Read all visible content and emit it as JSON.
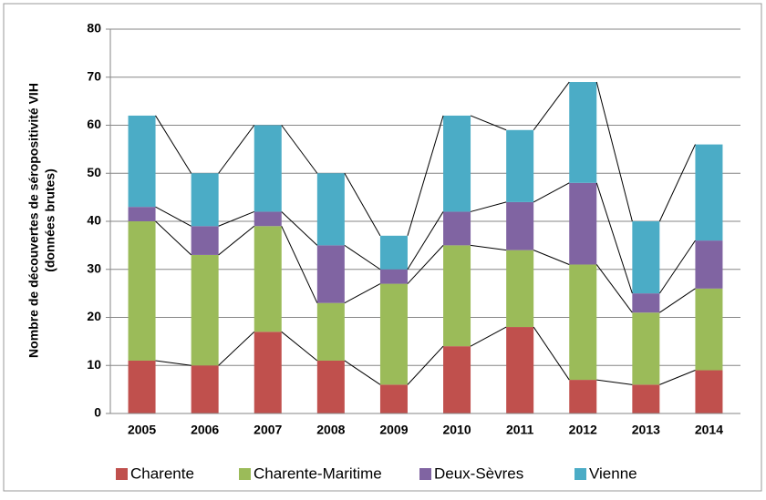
{
  "chart_data": {
    "type": "stacked_bar",
    "y_label": [
      "Nombre de découvertes  de séropositivité VIH",
      "(données brutes)"
    ],
    "categories": [
      "2005",
      "2006",
      "2007",
      "2008",
      "2009",
      "2010",
      "2011",
      "2012",
      "2013",
      "2014"
    ],
    "series": [
      {
        "name": "Charente",
        "color": "#c0504d",
        "values": [
          11,
          10,
          17,
          11,
          6,
          14,
          18,
          7,
          6,
          9
        ]
      },
      {
        "name": "Charente-Maritime",
        "color": "#9bbb59",
        "values": [
          29,
          23,
          22,
          12,
          21,
          21,
          16,
          24,
          15,
          17
        ]
      },
      {
        "name": "Deux-Sèvres",
        "color": "#8064a2",
        "values": [
          3,
          6,
          3,
          12,
          3,
          7,
          10,
          17,
          4,
          10
        ]
      },
      {
        "name": "Vienne",
        "color": "#4bacc6",
        "values": [
          19,
          11,
          18,
          15,
          7,
          20,
          15,
          21,
          15,
          20
        ]
      }
    ],
    "ylim": [
      0,
      80
    ],
    "yticks": [
      0,
      10,
      20,
      30,
      40,
      50,
      60,
      70,
      80
    ],
    "grid": true,
    "series_lines": true,
    "legend": "bottom"
  }
}
